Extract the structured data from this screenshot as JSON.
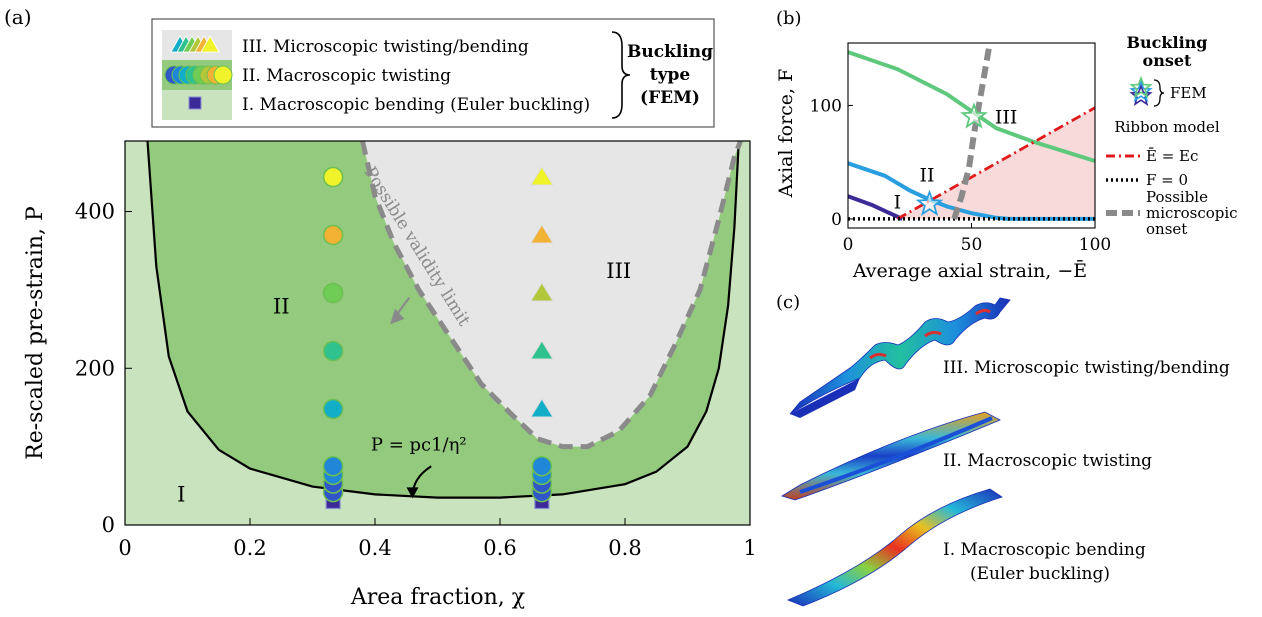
{
  "panel_labels": {
    "a": "(a)",
    "b": "(b)",
    "c": "(c)"
  },
  "colors": {
    "region_I": "#c8e3bd",
    "region_II": "#93ca7e",
    "region_III": "#e6e6e6",
    "boundary_line": "#000000",
    "validity_limit": "#8a8a8a",
    "viridis": [
      "#3b2a98",
      "#2f57c8",
      "#1f86d8",
      "#12aec8",
      "#2fc28e",
      "#6fcc55",
      "#b3c73a",
      "#f2b233",
      "#f0f32a"
    ],
    "red_curve": "#e0191b",
    "pink_fill": "#f9dada"
  },
  "chart_data": [
    {
      "id": "phase-diagram",
      "type": "scatter",
      "xlabel": "Area fraction, χ",
      "ylabel": "Re-scaled pre-strain, P",
      "xlim": [
        0,
        1
      ],
      "ylim": [
        0,
        490
      ],
      "xticks": [
        {
          "v": 0,
          "label": "0"
        },
        {
          "v": 0.2,
          "label": "0.2"
        },
        {
          "v": 0.4,
          "label": "0.4"
        },
        {
          "v": 0.6,
          "label": "0.6"
        },
        {
          "v": 0.8,
          "label": "0.8"
        },
        {
          "v": 1,
          "label": "1"
        }
      ],
      "yticks": [
        {
          "v": 0,
          "label": "0"
        },
        {
          "v": 200,
          "label": "200"
        },
        {
          "v": 400,
          "label": "400"
        }
      ],
      "regions": [
        {
          "label": "I",
          "x": 0.09,
          "y": 30
        },
        {
          "label": "II",
          "x": 0.25,
          "y": 270
        },
        {
          "label": "III",
          "x": 0.79,
          "y": 315
        }
      ],
      "boundary": {
        "label": "P = pc1/η²",
        "points": [
          [
            0.036,
            490
          ],
          [
            0.05,
            330
          ],
          [
            0.07,
            215
          ],
          [
            0.1,
            145
          ],
          [
            0.15,
            96
          ],
          [
            0.2,
            72
          ],
          [
            0.3,
            49
          ],
          [
            0.4,
            39
          ],
          [
            0.5,
            35
          ],
          [
            0.6,
            35
          ],
          [
            0.7,
            39
          ],
          [
            0.8,
            52
          ],
          [
            0.85,
            68
          ],
          [
            0.9,
            100
          ],
          [
            0.93,
            145
          ],
          [
            0.95,
            200
          ],
          [
            0.965,
            280
          ],
          [
            0.975,
            380
          ],
          [
            0.982,
            490
          ]
        ]
      },
      "validity_limit": {
        "label": "Possible validity limit",
        "points": [
          [
            0.38,
            490
          ],
          [
            0.4,
            420
          ],
          [
            0.43,
            360
          ],
          [
            0.47,
            300
          ],
          [
            0.52,
            240
          ],
          [
            0.57,
            180
          ],
          [
            0.62,
            140
          ],
          [
            0.66,
            110
          ],
          [
            0.7,
            100
          ],
          [
            0.74,
            100
          ],
          [
            0.79,
            120
          ],
          [
            0.84,
            165
          ],
          [
            0.88,
            230
          ],
          [
            0.92,
            300
          ],
          [
            0.95,
            390
          ],
          [
            0.975,
            470
          ],
          [
            0.985,
            490
          ]
        ]
      },
      "series": [
        {
          "name": "I. Macroscopic bending (Euler buckling)",
          "marker": "square",
          "points": [
            {
              "x": 0.333,
              "y": 30,
              "c": 0
            },
            {
              "x": 0.667,
              "y": 30,
              "c": 0
            }
          ]
        },
        {
          "name": "II. Macroscopic twisting",
          "marker": "circle",
          "points": [
            {
              "x": 0.333,
              "y": 42,
              "c": 1
            },
            {
              "x": 0.333,
              "y": 53,
              "c": 1
            },
            {
              "x": 0.333,
              "y": 64,
              "c": 2
            },
            {
              "x": 0.333,
              "y": 75,
              "c": 2
            },
            {
              "x": 0.333,
              "y": 148,
              "c": 3
            },
            {
              "x": 0.333,
              "y": 222,
              "c": 4
            },
            {
              "x": 0.333,
              "y": 296,
              "c": 5
            },
            {
              "x": 0.333,
              "y": 370,
              "c": 7
            },
            {
              "x": 0.333,
              "y": 444,
              "c": 8
            },
            {
              "x": 0.667,
              "y": 42,
              "c": 1
            },
            {
              "x": 0.667,
              "y": 53,
              "c": 1
            },
            {
              "x": 0.667,
              "y": 64,
              "c": 2
            },
            {
              "x": 0.667,
              "y": 75,
              "c": 2
            }
          ]
        },
        {
          "name": "III. Microscopic twisting/bending",
          "marker": "triangle",
          "points": [
            {
              "x": 0.667,
              "y": 148,
              "c": 3
            },
            {
              "x": 0.667,
              "y": 222,
              "c": 4
            },
            {
              "x": 0.667,
              "y": 296,
              "c": 6
            },
            {
              "x": 0.667,
              "y": 370,
              "c": 7
            },
            {
              "x": 0.667,
              "y": 444,
              "c": 8
            }
          ]
        }
      ],
      "legend": {
        "placement": "top",
        "entries": [
          {
            "label": "III. Microscopic twisting/bending",
            "marker": "triangle"
          },
          {
            "label": "II. Macroscopic twisting",
            "marker": "circle"
          },
          {
            "label": "I. Macroscopic bending (Euler buckling)",
            "marker": "square"
          }
        ],
        "bracket_label": [
          "Buckling",
          "type",
          "(FEM)"
        ]
      }
    },
    {
      "id": "force-strain",
      "type": "line",
      "xlabel": "Average axial strain, −Ē",
      "ylabel": "Axial force, F",
      "xlim": [
        0,
        100
      ],
      "ylim": [
        -8,
        155
      ],
      "xticks": [
        {
          "v": 0,
          "label": "0"
        },
        {
          "v": 50,
          "label": "50"
        },
        {
          "v": 100,
          "label": "100"
        }
      ],
      "yticks": [
        {
          "v": 0,
          "label": "0"
        },
        {
          "v": 100,
          "label": "100"
        }
      ],
      "region_labels": [
        {
          "label": "I",
          "x": 20,
          "y": 9
        },
        {
          "label": "II",
          "x": 32,
          "y": 33
        },
        {
          "label": "III",
          "x": 64,
          "y": 84
        }
      ],
      "series": [
        {
          "name": "III",
          "color": "#5ec97c",
          "points": [
            [
              0,
              147
            ],
            [
              20,
              132
            ],
            [
              40,
              110
            ],
            [
              52,
              92
            ],
            [
              60,
              80
            ],
            [
              75,
              68
            ],
            [
              100,
              51
            ]
          ]
        },
        {
          "name": "II",
          "color": "#2a9fe0",
          "points": [
            [
              0,
              49
            ],
            [
              15,
              38
            ],
            [
              25,
              25
            ],
            [
              33,
              17
            ],
            [
              40,
              11
            ],
            [
              50,
              5
            ],
            [
              60,
              1
            ],
            [
              65,
              0
            ],
            [
              100,
              0
            ]
          ]
        },
        {
          "name": "I",
          "color": "#3b2a98",
          "points": [
            [
              0,
              20
            ],
            [
              10,
              12
            ],
            [
              20,
              2
            ],
            [
              22,
              0
            ]
          ]
        },
        {
          "name": "Ē = Ec",
          "color": "#e0191b",
          "dash": "dashdot",
          "points": [
            [
              20,
              0
            ],
            [
              100,
              98
            ]
          ]
        },
        {
          "name": "F = 0",
          "color": "#000000",
          "dash": "dot",
          "points": [
            [
              0,
              0
            ],
            [
              100,
              0
            ]
          ]
        },
        {
          "name": "Possible microscopic onset",
          "color": "#8a8a8a",
          "dash": "dash",
          "points": [
            [
              43,
              0
            ],
            [
              46,
              20
            ],
            [
              49,
              45
            ],
            [
              51,
              75
            ],
            [
              53,
              100
            ],
            [
              55,
              125
            ],
            [
              57,
              150
            ]
          ]
        }
      ],
      "fem_onsets": [
        {
          "x": 33,
          "y": 13
        },
        {
          "x": 51,
          "y": 90
        }
      ],
      "legend": {
        "title": [
          "Buckling",
          "onset"
        ],
        "fem_label": "FEM",
        "ribbon_title": "Ribbon model",
        "entries": [
          "Ē = Ec",
          "F = 0",
          "Possible microscopic onset"
        ]
      }
    }
  ],
  "panel_c": {
    "labels": [
      "III. Microscopic twisting/bending",
      "II. Macroscopic twisting",
      "I. Macroscopic bending",
      "(Euler buckling)"
    ]
  }
}
